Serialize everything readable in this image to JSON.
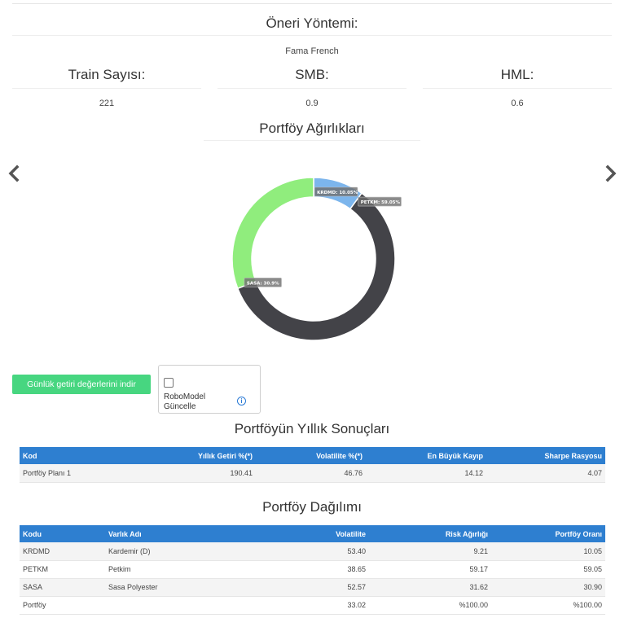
{
  "method": {
    "title": "Öneri Yöntemi:",
    "value": "Fama French"
  },
  "params": [
    {
      "label": "Train Sayısı:",
      "value": "221"
    },
    {
      "label": "SMB:",
      "value": "0.9"
    },
    {
      "label": "HML:",
      "value": "0.6"
    }
  ],
  "weights": {
    "title": "Portföy Ağırlıkları"
  },
  "chart_data": {
    "type": "pie",
    "donut": true,
    "categories": [
      "KRDMD",
      "PETKM",
      "SASA"
    ],
    "values": [
      10.05,
      59.05,
      30.9
    ],
    "labels": [
      "KRDMD: 10.05%",
      "PETKM: 59.05%",
      "SASA: 30.9%"
    ],
    "colors": [
      "#7cb5ec",
      "#434348",
      "#90ed7d"
    ]
  },
  "download_button": "Günlük getiri değerlerini indir",
  "robomodel": {
    "label": "RoboModel Güncelle",
    "info_icon": "info-circle-icon",
    "checked": false
  },
  "results": {
    "title": "Portföyün Yıllık Sonuçları",
    "columns": [
      "Kod",
      "Yıllık Getiri %(*)",
      "Volatilite %(*)",
      "En Büyük Kayıp",
      "Sharpe Rasyosu"
    ],
    "rows": [
      [
        "Portföy Planı 1",
        "190.41",
        "46.76",
        "14.12",
        "4.07"
      ]
    ]
  },
  "distribution": {
    "title": "Portföy Dağılımı",
    "columns": [
      "Kodu",
      "Varlık Adı",
      "Volatilite",
      "Risk Ağırlığı",
      "Portföy Oranı"
    ],
    "rows": [
      [
        "KRDMD",
        "Kardemir (D)",
        "53.40",
        "9.21",
        "10.05"
      ],
      [
        "PETKM",
        "Petkim",
        "38.65",
        "59.17",
        "59.05"
      ],
      [
        "SASA",
        "Sasa Polyester",
        "52.57",
        "31.62",
        "30.90"
      ],
      [
        "Portföy",
        "",
        "33.02",
        "%100.00",
        "%100.00"
      ]
    ]
  }
}
